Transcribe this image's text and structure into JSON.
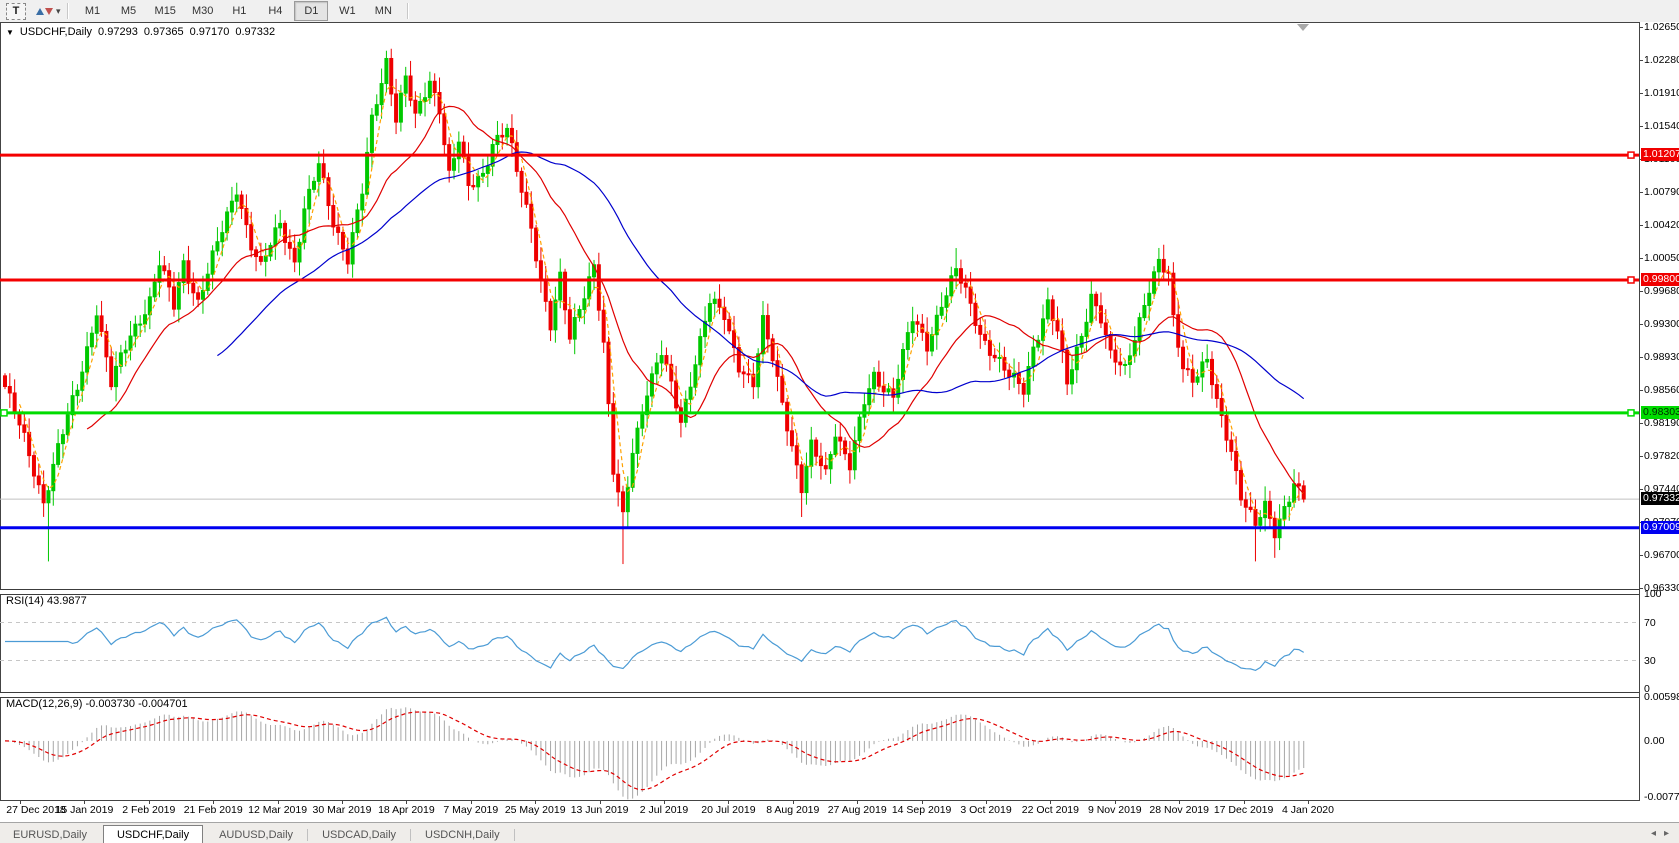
{
  "toolbar": {
    "text_tool_label": "T",
    "dropdown_caret": "▾",
    "timeframes": [
      "M1",
      "M5",
      "M15",
      "M30",
      "H1",
      "H4",
      "D1",
      "W1",
      "MN"
    ],
    "active_timeframe": "D1"
  },
  "main_chart": {
    "collapse_icon": "▼",
    "title_symbol": "USDCHF,Daily",
    "ohlc": {
      "open": "0.97293",
      "high": "0.97365",
      "low": "0.97170",
      "close": "0.97332"
    }
  },
  "price_axis": {
    "ticks": [
      "1.02650",
      "1.02280",
      "1.01910",
      "1.01540",
      "1.01160",
      "1.00790",
      "1.00420",
      "1.00050",
      "0.99680",
      "0.99300",
      "0.98930",
      "0.98560",
      "0.98190",
      "0.97820",
      "0.97440",
      "0.97070",
      "0.96700",
      "0.96330"
    ],
    "tags": [
      {
        "text": "1.01207",
        "price": 1.01207,
        "bg": "#f00000",
        "fg": "#ffffff"
      },
      {
        "text": "0.99800",
        "price": 0.998,
        "bg": "#f00000",
        "fg": "#ffffff"
      },
      {
        "text": "0.98303",
        "price": 0.98303,
        "bg": "#00dc00",
        "fg": "#002d00"
      },
      {
        "text": "0.97332",
        "price": 0.97332,
        "bg": "#000000",
        "fg": "#ffffff"
      },
      {
        "text": "0.97009",
        "price": 0.97009,
        "bg": "#0000f0",
        "fg": "#ffffff"
      }
    ]
  },
  "rsi_panel": {
    "label": "RSI(14)",
    "value": "43.9877",
    "line_color": "#4b9bd5",
    "levels": [
      {
        "v": 100,
        "label": "100",
        "dashed": false
      },
      {
        "v": 70,
        "label": "70",
        "dashed": true
      },
      {
        "v": 30,
        "label": "30",
        "dashed": true
      },
      {
        "v": 0,
        "label": "0",
        "dashed": false
      }
    ]
  },
  "macd_panel": {
    "label": "MACD(12,26,9)",
    "main_value": "-0.003730",
    "signal_value": "-0.004701",
    "bar_color": "#a6a6a6",
    "signal_color": "#e00000",
    "axis": [
      {
        "v": 0.005986,
        "label": "0.005986"
      },
      {
        "v": 0.0,
        "label": "0.00"
      },
      {
        "v": -0.00773,
        "label": "-0.00773"
      }
    ]
  },
  "date_axis": {
    "labels": [
      "27 Dec 2018",
      "15 Jan 2019",
      "2 Feb 2019",
      "21 Feb 2019",
      "12 Mar 2019",
      "30 Mar 2019",
      "18 Apr 2019",
      "7 May 2019",
      "25 May 2019",
      "13 Jun 2019",
      "2 Jul 2019",
      "20 Jul 2019",
      "8 Aug 2019",
      "27 Aug 2019",
      "14 Sep 2019",
      "3 Oct 2019",
      "22 Oct 2019",
      "9 Nov 2019",
      "28 Nov 2019",
      "17 Dec 2019",
      "4 Jan 2020"
    ]
  },
  "tab_bar": {
    "tabs": [
      {
        "label": "EURUSD,Daily",
        "active": false
      },
      {
        "label": "USDCHF,Daily",
        "active": true
      },
      {
        "label": "AUDUSD,Daily",
        "active": false
      },
      {
        "label": "USDCAD,Daily",
        "active": false
      },
      {
        "label": "USDCNH,Daily",
        "active": false
      }
    ],
    "scroll_left_icon": "◂",
    "scroll_right_icon": "▸"
  },
  "chart_data": {
    "type": "candlestick",
    "symbol": "USDCHF",
    "timeframe": "Daily",
    "n_candles": 270,
    "price_min": 0.9633,
    "price_max": 1.0265,
    "last_close": 0.97332,
    "current_price_line": {
      "price": 0.97332,
      "color": "#c0c0c0"
    },
    "up_color": "#00c800",
    "down_color": "#ee0000",
    "hlines": [
      {
        "price": 1.01207,
        "color": "#f40000",
        "width": 3,
        "handle_right": true
      },
      {
        "price": 0.998,
        "color": "#f40000",
        "width": 3,
        "handle_right": true
      },
      {
        "price": 0.98303,
        "color": "#00dc00",
        "width": 3,
        "handle_right": true,
        "handle_left": true
      },
      {
        "price": 0.97009,
        "color": "#0000f0",
        "width": 3,
        "handle_right": false
      }
    ],
    "moving_averages": [
      {
        "period": 4,
        "color": "#ffa200",
        "dashed": true
      },
      {
        "period": 18,
        "color": "#e00000",
        "dashed": false
      },
      {
        "period": 45,
        "color": "#0000cd",
        "dashed": false
      }
    ],
    "anchors": [
      [
        0,
        0.986
      ],
      [
        4,
        0.98
      ],
      [
        8,
        0.9732
      ],
      [
        11,
        0.979
      ],
      [
        15,
        0.9858
      ],
      [
        19,
        0.9948
      ],
      [
        22,
        0.9862
      ],
      [
        26,
        0.9918
      ],
      [
        30,
        0.9958
      ],
      [
        32,
        0.9998
      ],
      [
        35,
        0.995
      ],
      [
        37,
        1.0
      ],
      [
        40,
        0.9956
      ],
      [
        45,
        1.0035
      ],
      [
        48,
        1.0085
      ],
      [
        51,
        1.002
      ],
      [
        53,
        0.9992
      ],
      [
        57,
        1.0045
      ],
      [
        60,
        1.0002
      ],
      [
        62,
        1.0058
      ],
      [
        65,
        1.0108
      ],
      [
        68,
        1.0046
      ],
      [
        71,
        1.0006
      ],
      [
        74,
        1.0078
      ],
      [
        76,
        1.0158
      ],
      [
        79,
        1.0228
      ],
      [
        81,
        1.0165
      ],
      [
        83,
        1.0208
      ],
      [
        85,
        1.016
      ],
      [
        88,
        1.0204
      ],
      [
        90,
        1.0176
      ],
      [
        92,
        1.01
      ],
      [
        94,
        1.0136
      ],
      [
        96,
        1.0082
      ],
      [
        99,
        1.01
      ],
      [
        101,
        1.0136
      ],
      [
        104,
        1.015
      ],
      [
        106,
        1.01
      ],
      [
        109,
        1.004
      ],
      [
        111,
        0.9982
      ],
      [
        113,
        0.993
      ],
      [
        115,
        0.998
      ],
      [
        117,
        0.9912
      ],
      [
        119,
        0.995
      ],
      [
        122,
        1.0
      ],
      [
        124,
        0.9906
      ],
      [
        126,
        0.9762
      ],
      [
        128,
        0.9712
      ],
      [
        130,
        0.979
      ],
      [
        133,
        0.9856
      ],
      [
        136,
        0.9896
      ],
      [
        138,
        0.986
      ],
      [
        140,
        0.9822
      ],
      [
        143,
        0.989
      ],
      [
        146,
        0.9954
      ],
      [
        149,
        0.994
      ],
      [
        152,
        0.9886
      ],
      [
        155,
        0.9862
      ],
      [
        157,
        0.993
      ],
      [
        159,
        0.9892
      ],
      [
        162,
        0.982
      ],
      [
        165,
        0.9745
      ],
      [
        167,
        0.979
      ],
      [
        170,
        0.9762
      ],
      [
        172,
        0.9812
      ],
      [
        175,
        0.9772
      ],
      [
        178,
        0.984
      ],
      [
        180,
        0.987
      ],
      [
        184,
        0.9852
      ],
      [
        186,
        0.9896
      ],
      [
        188,
        0.9934
      ],
      [
        191,
        0.9906
      ],
      [
        194,
        0.9956
      ],
      [
        197,
        0.999
      ],
      [
        199,
        0.9964
      ],
      [
        202,
        0.992
      ],
      [
        205,
        0.9896
      ],
      [
        208,
        0.987
      ],
      [
        211,
        0.9856
      ],
      [
        213,
        0.9906
      ],
      [
        216,
        0.9954
      ],
      [
        218,
        0.992
      ],
      [
        220,
        0.9862
      ],
      [
        223,
        0.992
      ],
      [
        225,
        0.9964
      ],
      [
        227,
        0.9936
      ],
      [
        229,
        0.9892
      ],
      [
        232,
        0.988
      ],
      [
        234,
        0.992
      ],
      [
        237,
        0.997
      ],
      [
        239,
        0.9996
      ],
      [
        241,
        0.9984
      ],
      [
        242,
        0.9936
      ],
      [
        244,
        0.9886
      ],
      [
        246,
        0.987
      ],
      [
        249,
        0.9886
      ],
      [
        251,
        0.984
      ],
      [
        254,
        0.979
      ],
      [
        256,
        0.974
      ],
      [
        259,
        0.9702
      ],
      [
        261,
        0.9722
      ],
      [
        263,
        0.9696
      ],
      [
        265,
        0.9726
      ],
      [
        267,
        0.9752
      ],
      [
        269,
        0.97332
      ]
    ],
    "low_spikes": [
      [
        9,
        0.9663
      ],
      [
        128,
        0.966
      ],
      [
        165,
        0.9713
      ],
      [
        259,
        0.9663
      ],
      [
        263,
        0.9667
      ]
    ],
    "high_spikes": [
      [
        65,
        1.0122
      ],
      [
        79,
        1.0238
      ],
      [
        197,
        1.0016
      ]
    ],
    "indicators": {
      "rsi": {
        "period": 14,
        "last": 43.9877,
        "range": [
          0,
          100
        ],
        "levels": [
          30,
          70
        ]
      },
      "macd": {
        "fast": 12,
        "slow": 26,
        "signal": 9,
        "last_main": -0.00373,
        "last_signal": -0.004701,
        "axis_max": 0.005986,
        "axis_min": -0.00773
      }
    }
  }
}
